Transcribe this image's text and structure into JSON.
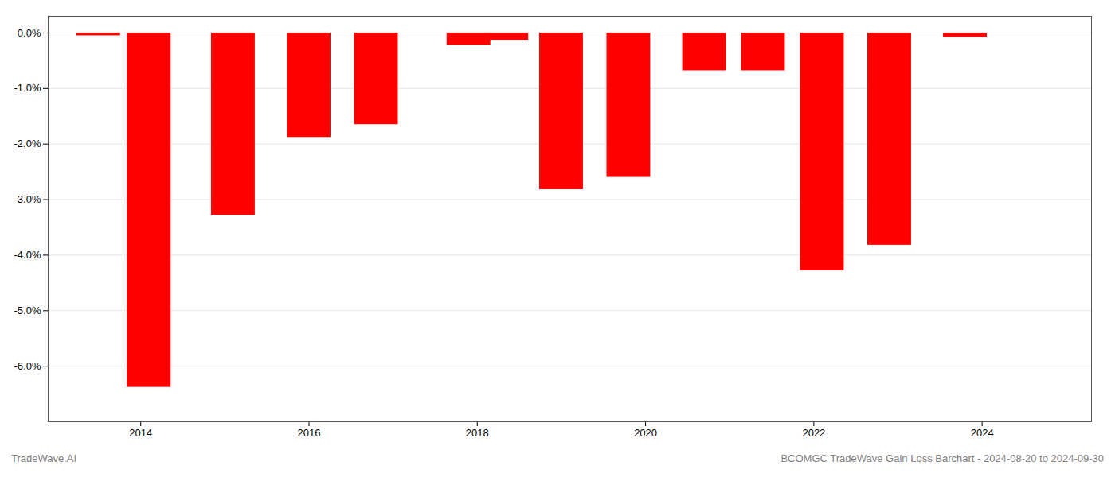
{
  "chart_data": {
    "type": "bar",
    "x": [
      2013.5,
      2014.1,
      2015.1,
      2016.0,
      2016.8,
      2017.9,
      2018.35,
      2019.0,
      2019.8,
      2020.7,
      2021.4,
      2022.1,
      2022.9,
      2023.8
    ],
    "values": [
      -0.05,
      -6.38,
      -3.28,
      -1.88,
      -1.65,
      -0.22,
      -0.13,
      -2.82,
      -2.6,
      -0.68,
      -0.68,
      -4.28,
      -3.82,
      -0.08
    ],
    "color": "#ff0000",
    "xlim": [
      2012.9,
      2025.3
    ],
    "xticks": [
      2014,
      2016,
      2018,
      2020,
      2022,
      2024
    ],
    "ylim": [
      -7.0,
      0.3
    ],
    "yticks": [
      {
        "value": 0.0,
        "label": "0.0%"
      },
      {
        "value": -1.0,
        "label": "-1.0%"
      },
      {
        "value": -2.0,
        "label": "-2.0%"
      },
      {
        "value": -3.0,
        "label": "-3.0%"
      },
      {
        "value": -4.0,
        "label": "-4.0%"
      },
      {
        "value": -5.0,
        "label": "-5.0%"
      },
      {
        "value": -6.0,
        "label": "-6.0%"
      }
    ],
    "grid": "y",
    "annotations": [
      "TradeWave.AI",
      "BCOMGC TradeWave Gain Loss Barchart - 2024-08-20 to 2024-09-30"
    ]
  }
}
